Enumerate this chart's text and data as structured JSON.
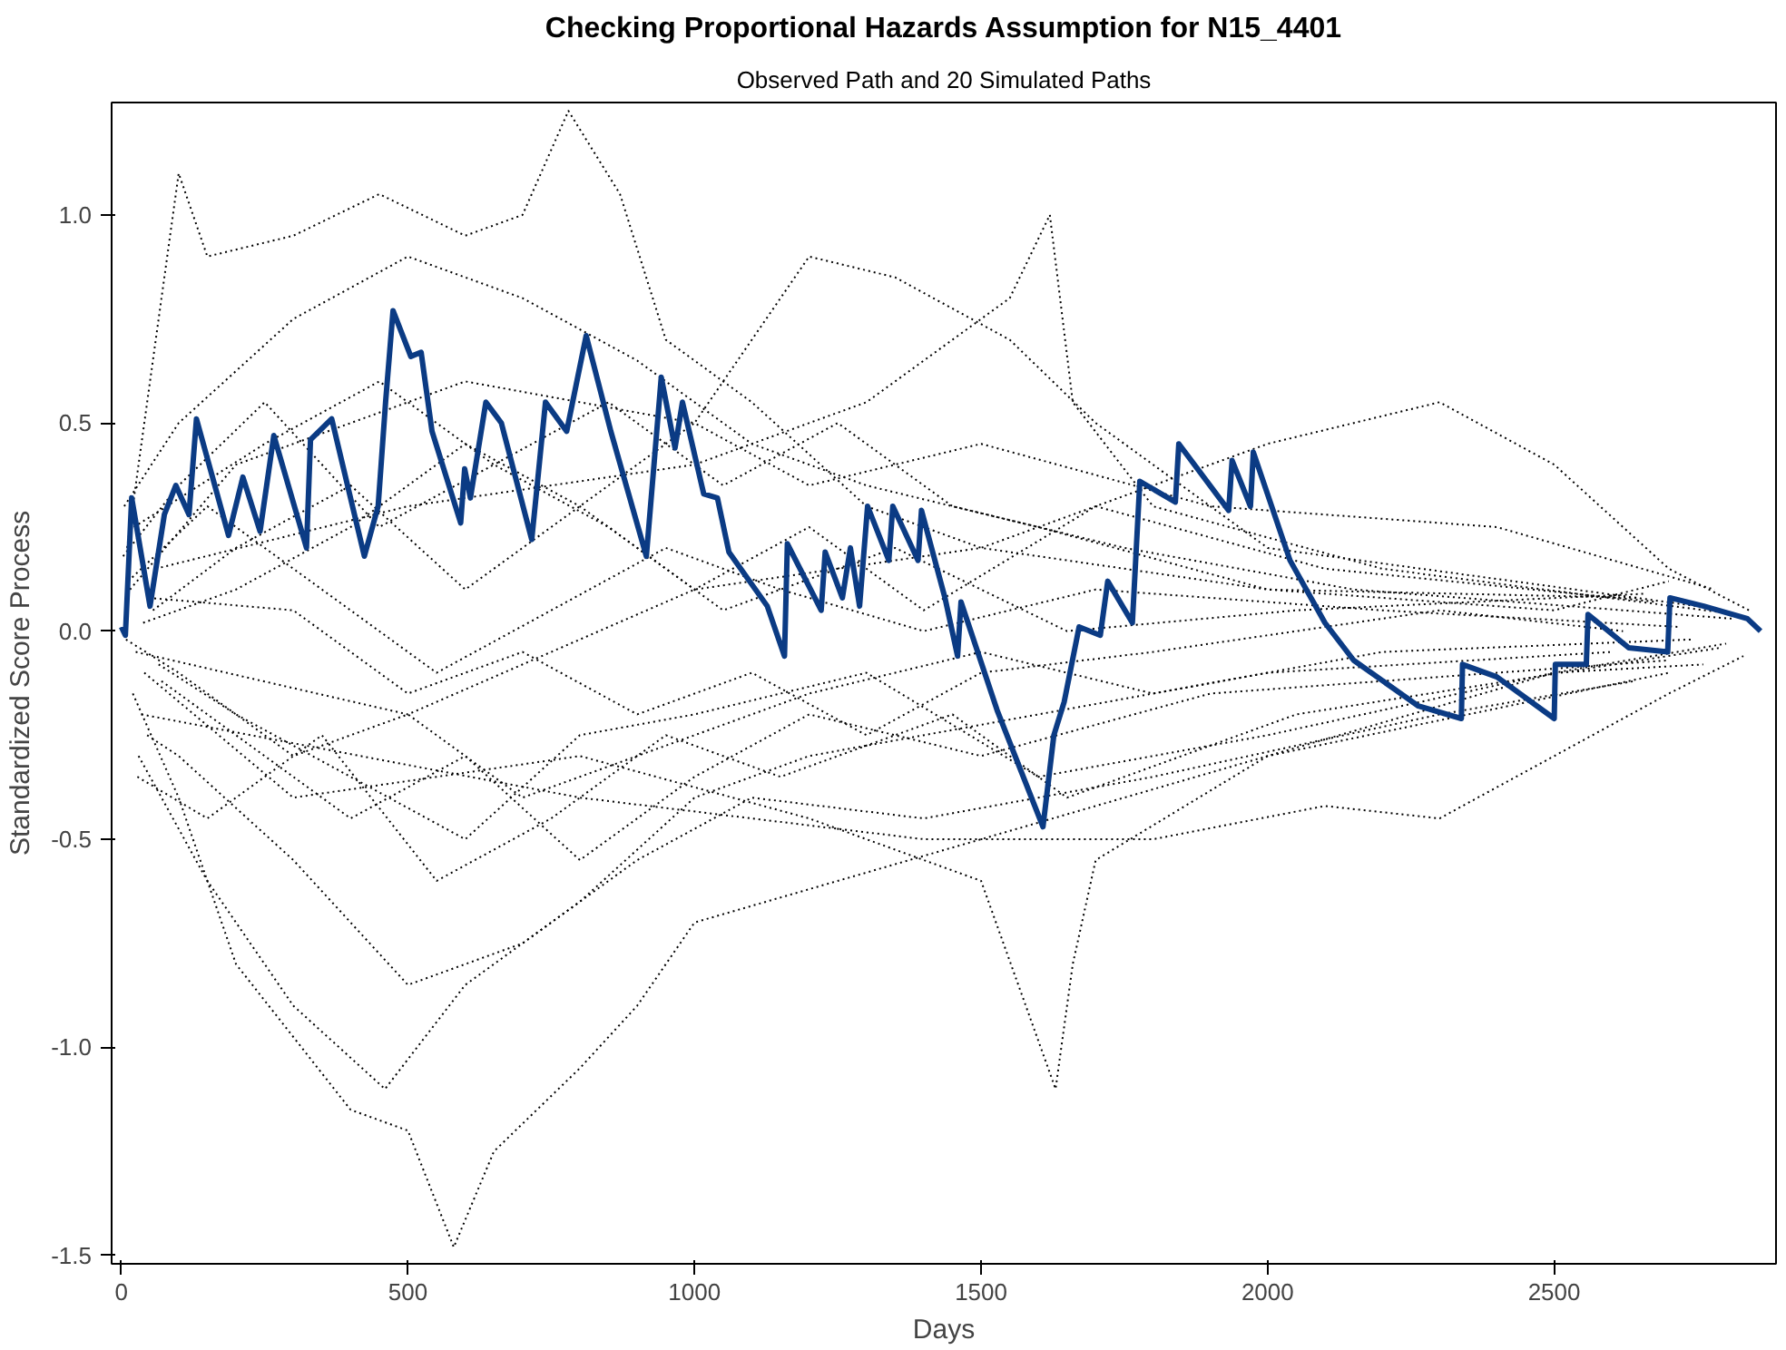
{
  "chart_data": {
    "type": "line",
    "title": "Checking Proportional Hazards Assumption for N15_4401",
    "subtitle": "Observed Path and 20 Simulated Paths",
    "xlabel": "Days",
    "ylabel": "Standardized Score Process",
    "xlim": [
      -17,
      2887
    ],
    "ylim": [
      -1.52,
      1.27
    ],
    "xticks": [
      0,
      500,
      1000,
      1500,
      2000,
      2500
    ],
    "yticks": [
      {
        "value": -1.5,
        "label": "-1.5"
      },
      {
        "value": -1,
        "label": "-1.0"
      },
      {
        "value": -0.5,
        "label": "-0.5"
      },
      {
        "value": 0,
        "label": "0.0"
      },
      {
        "value": 0.5,
        "label": "0.5"
      },
      {
        "value": 1,
        "label": "1.0"
      }
    ],
    "grid": false,
    "marker": "none",
    "series": [
      {
        "color": "#000000",
        "line_style": "dotted",
        "x": [
          10,
          50,
          100,
          150,
          300,
          450,
          600,
          700,
          780,
          870,
          950,
          1100,
          1300,
          1500,
          2000,
          2500,
          2700
        ],
        "values": [
          0.2,
          0.6,
          1.1,
          0.9,
          0.95,
          1.05,
          0.95,
          1.0,
          1.25,
          1.05,
          0.7,
          0.55,
          0.3,
          0.2,
          0.1,
          0.05,
          0.12
        ]
      },
      {
        "color": "#000000",
        "line_style": "dotted",
        "x": [
          20,
          100,
          200,
          400,
          500,
          580,
          650,
          800,
          900,
          1000,
          1500,
          2000,
          2700
        ],
        "values": [
          -0.15,
          -0.4,
          -0.8,
          -1.15,
          -1.2,
          -1.48,
          -1.25,
          -1.05,
          -0.9,
          -0.7,
          -0.5,
          -0.3,
          -0.1
        ]
      },
      {
        "color": "#000000",
        "line_style": "dotted",
        "x": [
          30,
          150,
          300,
          460,
          600,
          800,
          1000,
          1200,
          1600,
          2000,
          2600
        ],
        "values": [
          -0.3,
          -0.6,
          -0.9,
          -1.1,
          -0.85,
          -0.65,
          -0.4,
          -0.3,
          -0.2,
          -0.1,
          -0.05
        ]
      },
      {
        "color": "#000000",
        "line_style": "dotted",
        "x": [
          40,
          300,
          800,
          1200,
          1500,
          1630,
          1660,
          1700,
          2000,
          2500,
          2800
        ],
        "values": [
          -0.1,
          -0.4,
          -0.3,
          -0.45,
          -0.6,
          -1.1,
          -0.8,
          -0.55,
          -0.3,
          -0.1,
          -0.03
        ]
      },
      {
        "color": "#000000",
        "line_style": "dotted",
        "x": [
          15,
          200,
          600,
          1000,
          1200,
          1350,
          1550,
          1700,
          2000,
          2750
        ],
        "values": [
          0.1,
          0.4,
          0.6,
          0.5,
          0.9,
          0.85,
          0.7,
          0.5,
          0.2,
          0.06
        ]
      },
      {
        "color": "#000000",
        "line_style": "dotted",
        "x": [
          60,
          500,
          1000,
          1300,
          1550,
          1620,
          1660,
          1800,
          2200,
          2820
        ],
        "values": [
          0.15,
          0.3,
          0.4,
          0.55,
          0.8,
          1.0,
          0.55,
          0.3,
          0.15,
          0.04
        ]
      },
      {
        "color": "#000000",
        "line_style": "dotted",
        "x": [
          25,
          500,
          1000,
          1500,
          2000,
          2300,
          2500,
          2700,
          2840
        ],
        "values": [
          -0.05,
          -0.2,
          0.1,
          0.2,
          0.45,
          0.55,
          0.4,
          0.15,
          0.05
        ]
      },
      {
        "color": "#000000",
        "line_style": "dotted",
        "x": [
          35,
          800,
          1400,
          1800,
          2100,
          2300,
          2500,
          2700,
          2830
        ],
        "values": [
          -0.2,
          -0.4,
          -0.5,
          -0.5,
          -0.42,
          -0.45,
          -0.3,
          -0.15,
          -0.06
        ]
      },
      {
        "color": "#000000",
        "line_style": "dotted",
        "x": [
          5,
          100,
          300,
          500,
          700,
          900,
          1100,
          1300,
          1600,
          2000,
          2650
        ],
        "values": [
          0.3,
          0.5,
          0.75,
          0.9,
          0.8,
          0.65,
          0.45,
          0.35,
          0.25,
          0.1,
          0.08
        ]
      },
      {
        "color": "#000000",
        "line_style": "dotted",
        "x": [
          45,
          100,
          300,
          500,
          700,
          900,
          1100,
          1400,
          1800,
          2300,
          2640
        ],
        "values": [
          -0.25,
          -0.3,
          -0.55,
          -0.85,
          -0.75,
          -0.55,
          -0.4,
          -0.45,
          -0.35,
          -0.2,
          -0.12
        ]
      },
      {
        "color": "#000000",
        "line_style": "dotted",
        "x": [
          55,
          200,
          400,
          600,
          800,
          1000,
          1200,
          1500,
          1900,
          2400,
          2780
        ],
        "values": [
          0.05,
          0.2,
          0.35,
          0.1,
          0.3,
          0.5,
          0.35,
          0.45,
          0.3,
          0.25,
          0.1
        ]
      },
      {
        "color": "#000000",
        "line_style": "dotted",
        "x": [
          65,
          200,
          400,
          600,
          800,
          1000,
          1300,
          1600,
          2000,
          2500,
          2760
        ],
        "values": [
          -0.08,
          -0.2,
          -0.35,
          -0.5,
          -0.25,
          -0.2,
          -0.1,
          -0.35,
          -0.25,
          -0.1,
          -0.08
        ]
      },
      {
        "color": "#000000",
        "line_style": "dotted",
        "x": [
          12,
          150,
          350,
          550,
          750,
          950,
          1150,
          1400,
          1700,
          2200,
          2720
        ],
        "values": [
          0.12,
          0.3,
          0.1,
          -0.1,
          0.05,
          0.2,
          0.1,
          0.0,
          0.1,
          0.05,
          0.01
        ]
      },
      {
        "color": "#000000",
        "line_style": "dotted",
        "x": [
          8,
          100,
          300,
          500,
          700,
          900,
          1200,
          1500,
          1800,
          2200,
          2740
        ],
        "values": [
          -0.02,
          -0.1,
          -0.3,
          -0.2,
          -0.4,
          -0.3,
          -0.15,
          -0.05,
          -0.15,
          -0.05,
          -0.02
        ]
      },
      {
        "color": "#000000",
        "line_style": "dotted",
        "x": [
          22,
          250,
          450,
          650,
          850,
          1050,
          1250,
          1450,
          1750,
          2150,
          2810
        ],
        "values": [
          0.25,
          0.45,
          0.6,
          0.4,
          0.55,
          0.35,
          0.5,
          0.3,
          0.2,
          0.1,
          0.03
        ]
      },
      {
        "color": "#000000",
        "line_style": "dotted",
        "x": [
          28,
          150,
          350,
          550,
          750,
          950,
          1150,
          1450,
          1650,
          2050,
          2790
        ],
        "values": [
          -0.35,
          -0.45,
          -0.25,
          -0.6,
          -0.45,
          -0.25,
          -0.35,
          -0.2,
          -0.4,
          -0.2,
          -0.04
        ]
      },
      {
        "color": "#000000",
        "line_style": "dotted",
        "x": [
          38,
          200,
          400,
          600,
          800,
          1000,
          1200,
          1400,
          1700,
          2100,
          2680
        ],
        "values": [
          0.02,
          0.1,
          0.25,
          0.45,
          0.3,
          0.1,
          0.25,
          0.05,
          0.3,
          0.15,
          0.07
        ]
      },
      {
        "color": "#000000",
        "line_style": "dotted",
        "x": [
          48,
          300,
          500,
          700,
          900,
          1100,
          1300,
          1500,
          1800,
          2300,
          2620
        ],
        "values": [
          0.08,
          0.05,
          -0.15,
          -0.05,
          -0.2,
          -0.1,
          -0.25,
          -0.1,
          -0.05,
          0.05,
          0.0
        ]
      },
      {
        "color": "#000000",
        "line_style": "dotted",
        "x": [
          3,
          100,
          250,
          450,
          650,
          850,
          1050,
          1350,
          1650,
          2050,
          2660
        ],
        "values": [
          0.18,
          0.35,
          0.55,
          0.25,
          0.4,
          0.25,
          0.05,
          0.2,
          0.0,
          0.05,
          0.09
        ]
      },
      {
        "color": "#000000",
        "line_style": "dotted",
        "x": [
          70,
          200,
          400,
          600,
          800,
          1000,
          1200,
          1500,
          1900,
          2400,
          2700
        ],
        "values": [
          -0.12,
          -0.25,
          -0.45,
          -0.3,
          -0.55,
          -0.35,
          -0.2,
          -0.3,
          -0.15,
          -0.1,
          -0.07
        ]
      },
      {
        "color": "#0b3b84",
        "line_style": "solid",
        "x": [
          0,
          7,
          18,
          50,
          75,
          95,
          118,
          131,
          187,
          212,
          242,
          266,
          323,
          330,
          367,
          424,
          448,
          461,
          474,
          505,
          523,
          542,
          592,
          599,
          609,
          636,
          663,
          716,
          740,
          777,
          811,
          854,
          916,
          942,
          966,
          979,
          1016,
          1040,
          1060,
          1127,
          1157,
          1162,
          1221,
          1228,
          1258,
          1272,
          1288,
          1302,
          1339,
          1346,
          1390,
          1396,
          1437,
          1459,
          1465,
          1528,
          1608,
          1627,
          1645,
          1671,
          1708,
          1721,
          1764,
          1777,
          1839,
          1845,
          1932,
          1938,
          1970,
          1975,
          2039,
          2100,
          2150,
          2263,
          2338,
          2340,
          2400,
          2500,
          2502,
          2556,
          2559,
          2630,
          2698,
          2702,
          2761,
          2837,
          2860
        ],
        "values": [
          0.01,
          -0.01,
          0.32,
          0.06,
          0.28,
          0.35,
          0.28,
          0.51,
          0.23,
          0.37,
          0.24,
          0.47,
          0.2,
          0.46,
          0.51,
          0.18,
          0.3,
          0.55,
          0.77,
          0.66,
          0.67,
          0.48,
          0.26,
          0.39,
          0.32,
          0.55,
          0.5,
          0.22,
          0.55,
          0.48,
          0.71,
          0.48,
          0.18,
          0.61,
          0.44,
          0.55,
          0.33,
          0.32,
          0.19,
          0.06,
          -0.06,
          0.21,
          0.05,
          0.19,
          0.08,
          0.2,
          0.06,
          0.3,
          0.17,
          0.3,
          0.17,
          0.29,
          0.08,
          -0.06,
          0.07,
          -0.19,
          -0.47,
          -0.25,
          -0.17,
          0.01,
          -0.01,
          0.12,
          0.02,
          0.36,
          0.31,
          0.45,
          0.29,
          0.41,
          0.3,
          0.43,
          0.17,
          0.02,
          -0.07,
          -0.18,
          -0.21,
          -0.08,
          -0.11,
          -0.21,
          -0.08,
          -0.08,
          0.04,
          -0.04,
          -0.05,
          0.08,
          0.06,
          0.03,
          0.0
        ]
      }
    ]
  }
}
